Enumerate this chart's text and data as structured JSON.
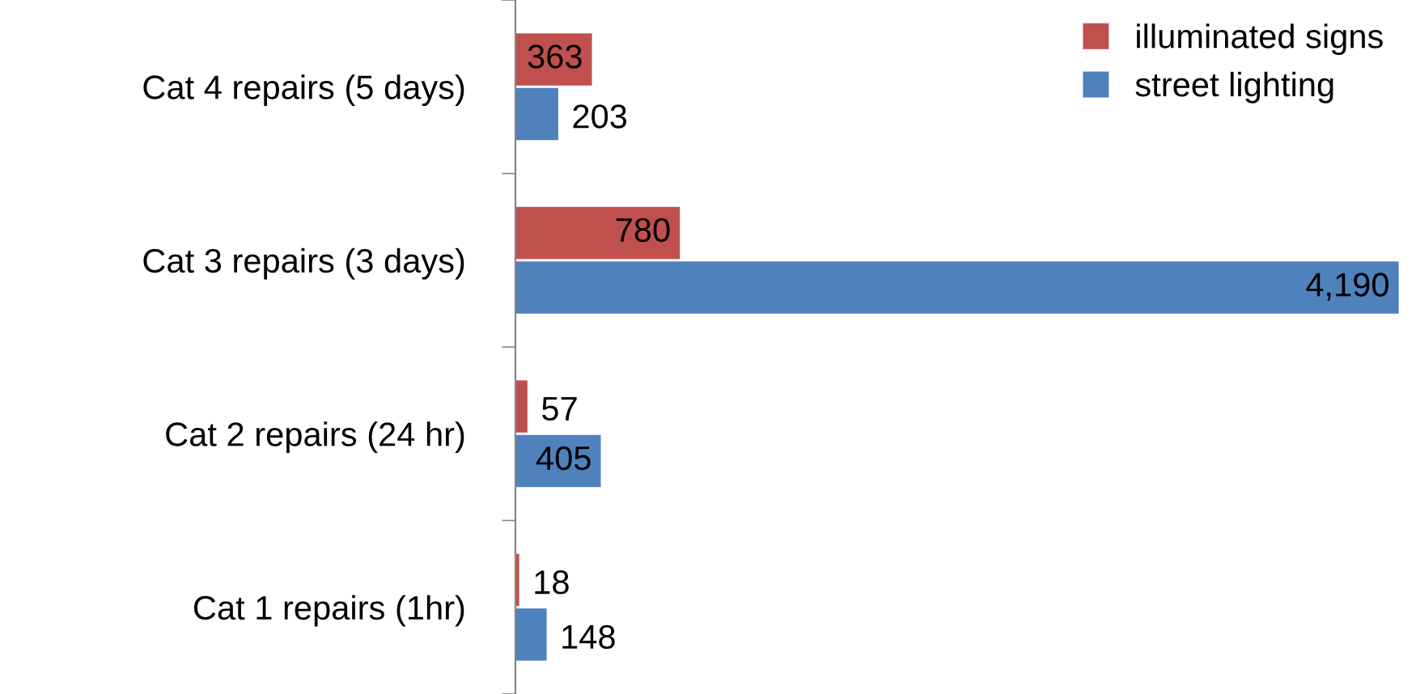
{
  "chart_data": {
    "type": "bar",
    "orientation": "horizontal",
    "categories": [
      "Cat 4 repairs (5 days)",
      "Cat 3 repairs (3 days)",
      "Cat 2 repairs (24 hr)",
      "Cat 1 repairs (1hr)"
    ],
    "series": [
      {
        "name": "illuminated signs",
        "color": "#c0504d",
        "values": [
          363,
          780,
          57,
          18
        ],
        "value_labels": [
          "363",
          "780",
          "57",
          "18"
        ]
      },
      {
        "name": "street lighting",
        "color": "#4f81bd",
        "values": [
          203,
          4190,
          405,
          148
        ],
        "value_labels": [
          "203",
          "4,190",
          "405",
          "148"
        ]
      }
    ],
    "legend": "top right",
    "grid": false
  }
}
